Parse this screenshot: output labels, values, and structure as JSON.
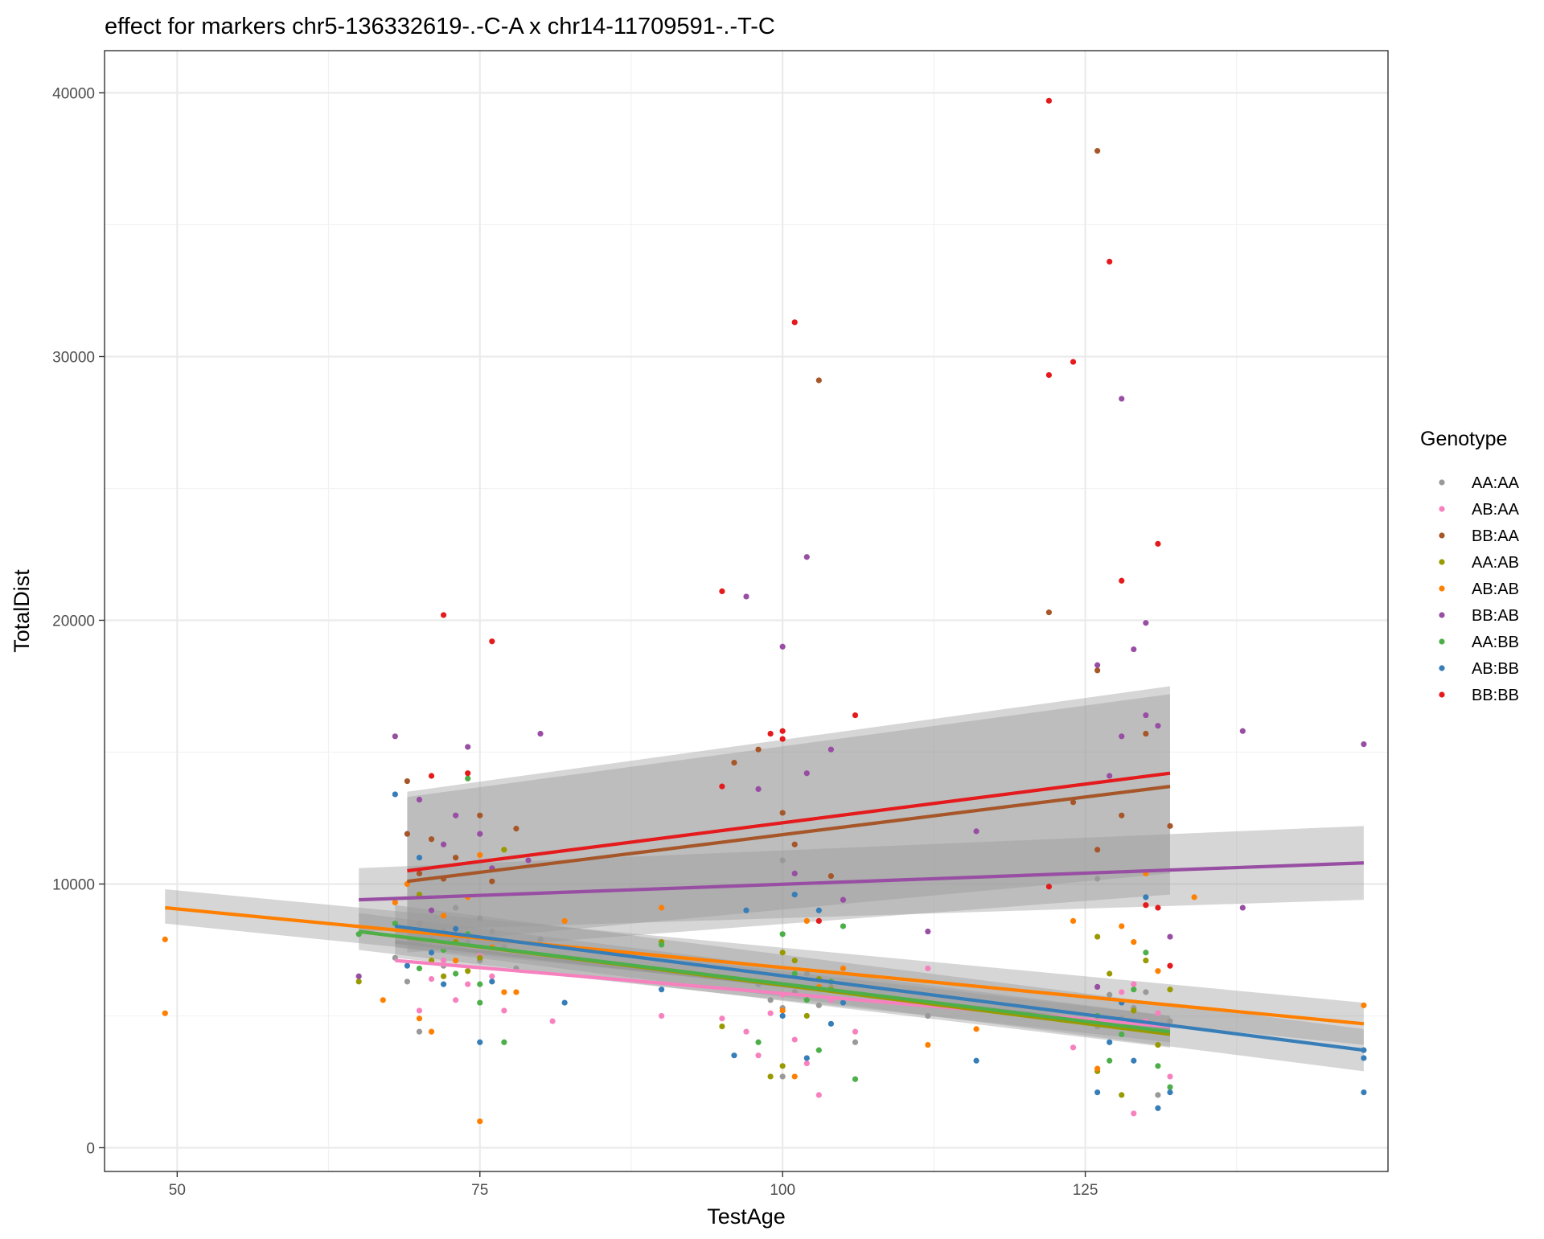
{
  "chart_data": {
    "type": "scatter",
    "title": "effect for markers chr5-136332619-.-C-A x chr14-11709591-.-T-C",
    "xlabel": "TestAge",
    "ylabel": "TotalDist",
    "xlim": [
      44,
      150
    ],
    "ylim": [
      -900,
      41600
    ],
    "x_ticks": [
      50,
      75,
      100,
      125
    ],
    "y_ticks": [
      0,
      10000,
      20000,
      30000,
      40000
    ],
    "x_tick_labels": [
      "50",
      "75",
      "100",
      "125"
    ],
    "y_tick_labels": [
      "0",
      "10000",
      "20000",
      "30000",
      "40000"
    ],
    "grid": true,
    "legend_title": "Genotype",
    "legend_position": "right",
    "series": [
      {
        "name": "AA:AA",
        "color": "#999999",
        "points": [
          [
            68,
            7200
          ],
          [
            69,
            6300
          ],
          [
            70,
            8500
          ],
          [
            70,
            4400
          ],
          [
            71,
            7900
          ],
          [
            72,
            8200
          ],
          [
            72,
            6900
          ],
          [
            73,
            9100
          ],
          [
            74,
            7800
          ],
          [
            75,
            8700
          ],
          [
            75,
            7100
          ],
          [
            76,
            8200
          ],
          [
            77,
            7600
          ],
          [
            78,
            6800
          ],
          [
            80,
            7900
          ],
          [
            98,
            6200
          ],
          [
            99,
            5600
          ],
          [
            100,
            5300
          ],
          [
            100,
            2700
          ],
          [
            100,
            10900
          ],
          [
            101,
            5900
          ],
          [
            102,
            6600
          ],
          [
            103,
            5400
          ],
          [
            104,
            6100
          ],
          [
            106,
            4000
          ],
          [
            112,
            5000
          ],
          [
            126,
            10200
          ],
          [
            126,
            4600
          ],
          [
            127,
            5800
          ],
          [
            128,
            4900
          ],
          [
            129,
            5300
          ],
          [
            130,
            5900
          ],
          [
            131,
            2000
          ],
          [
            132,
            4800
          ]
        ],
        "fit": {
          "x": [
            68,
            132
          ],
          "y": [
            7800,
            4500
          ]
        }
      },
      {
        "name": "AB:AA",
        "color": "#F781BF",
        "points": [
          [
            70,
            5200
          ],
          [
            71,
            6400
          ],
          [
            72,
            7100
          ],
          [
            73,
            5600
          ],
          [
            74,
            6200
          ],
          [
            75,
            7300
          ],
          [
            76,
            6500
          ],
          [
            77,
            5200
          ],
          [
            81,
            4800
          ],
          [
            90,
            5000
          ],
          [
            95,
            4900
          ],
          [
            97,
            4400
          ],
          [
            98,
            3500
          ],
          [
            99,
            5100
          ],
          [
            100,
            5800
          ],
          [
            101,
            4100
          ],
          [
            102,
            3200
          ],
          [
            103,
            2000
          ],
          [
            104,
            5600
          ],
          [
            106,
            4400
          ],
          [
            112,
            6800
          ],
          [
            124,
            3800
          ],
          [
            128,
            5900
          ],
          [
            129,
            1300
          ],
          [
            129,
            6200
          ],
          [
            130,
            4800
          ],
          [
            131,
            5100
          ],
          [
            132,
            2700
          ]
        ],
        "fit": {
          "x": [
            68,
            132
          ],
          "y": [
            7100,
            4600
          ]
        }
      },
      {
        "name": "BB:AA",
        "color": "#A65628",
        "points": [
          [
            69,
            13900
          ],
          [
            69,
            11900
          ],
          [
            70,
            10400
          ],
          [
            71,
            11700
          ],
          [
            72,
            10200
          ],
          [
            73,
            11000
          ],
          [
            75,
            12600
          ],
          [
            76,
            10100
          ],
          [
            78,
            12100
          ],
          [
            96,
            14600
          ],
          [
            98,
            15100
          ],
          [
            100,
            12700
          ],
          [
            101,
            11500
          ],
          [
            103,
            29100
          ],
          [
            104,
            10300
          ],
          [
            122,
            20300
          ],
          [
            124,
            13100
          ],
          [
            126,
            37800
          ],
          [
            126,
            18100
          ],
          [
            126,
            11300
          ],
          [
            128,
            12600
          ],
          [
            130,
            15700
          ],
          [
            132,
            12200
          ]
        ],
        "fit": {
          "x": [
            69,
            132
          ],
          "y": [
            10100,
            13700
          ]
        }
      },
      {
        "name": "AA:AB",
        "color": "#999900",
        "points": [
          [
            65,
            6300
          ],
          [
            70,
            9600
          ],
          [
            71,
            7100
          ],
          [
            72,
            6500
          ],
          [
            73,
            7800
          ],
          [
            74,
            6700
          ],
          [
            75,
            7200
          ],
          [
            77,
            11300
          ],
          [
            90,
            7800
          ],
          [
            95,
            4600
          ],
          [
            99,
            2700
          ],
          [
            100,
            7400
          ],
          [
            100,
            3100
          ],
          [
            101,
            7100
          ],
          [
            102,
            5000
          ],
          [
            103,
            6400
          ],
          [
            104,
            6000
          ],
          [
            126,
            8000
          ],
          [
            126,
            2900
          ],
          [
            127,
            6600
          ],
          [
            128,
            2000
          ],
          [
            129,
            5200
          ],
          [
            130,
            7100
          ],
          [
            131,
            3900
          ],
          [
            132,
            6000
          ]
        ],
        "fit": {
          "x": [
            65,
            132
          ],
          "y": [
            8200,
            4300
          ]
        }
      },
      {
        "name": "AB:AB",
        "color": "#FF7F00",
        "points": [
          [
            49,
            7900
          ],
          [
            49,
            5100
          ],
          [
            67,
            5600
          ],
          [
            68,
            9300
          ],
          [
            69,
            10000
          ],
          [
            70,
            4900
          ],
          [
            71,
            4400
          ],
          [
            72,
            8800
          ],
          [
            73,
            7100
          ],
          [
            74,
            9500
          ],
          [
            75,
            11100
          ],
          [
            75,
            1000
          ],
          [
            76,
            7600
          ],
          [
            77,
            5900
          ],
          [
            78,
            5900
          ],
          [
            82,
            8600
          ],
          [
            90,
            9100
          ],
          [
            100,
            5200
          ],
          [
            101,
            2700
          ],
          [
            102,
            8600
          ],
          [
            103,
            6100
          ],
          [
            105,
            6800
          ],
          [
            112,
            3900
          ],
          [
            116,
            4500
          ],
          [
            124,
            8600
          ],
          [
            126,
            3000
          ],
          [
            128,
            8400
          ],
          [
            129,
            7800
          ],
          [
            130,
            10400
          ],
          [
            131,
            6700
          ],
          [
            134,
            9500
          ],
          [
            148,
            5400
          ]
        ],
        "fit": {
          "x": [
            49,
            148
          ],
          "y": [
            9100,
            4700
          ]
        }
      },
      {
        "name": "BB:AB",
        "color": "#984EA3",
        "points": [
          [
            65,
            6500
          ],
          [
            68,
            15600
          ],
          [
            70,
            13200
          ],
          [
            71,
            9000
          ],
          [
            72,
            11500
          ],
          [
            73,
            12600
          ],
          [
            74,
            15200
          ],
          [
            75,
            11900
          ],
          [
            76,
            10600
          ],
          [
            79,
            10900
          ],
          [
            80,
            15700
          ],
          [
            97,
            20900
          ],
          [
            98,
            13600
          ],
          [
            100,
            19000
          ],
          [
            101,
            10400
          ],
          [
            102,
            22400
          ],
          [
            102,
            14200
          ],
          [
            104,
            15100
          ],
          [
            105,
            9400
          ],
          [
            112,
            8200
          ],
          [
            116,
            12000
          ],
          [
            126,
            18300
          ],
          [
            126,
            6100
          ],
          [
            127,
            14100
          ],
          [
            128,
            28400
          ],
          [
            128,
            15600
          ],
          [
            129,
            18900
          ],
          [
            130,
            19900
          ],
          [
            130,
            16400
          ],
          [
            131,
            16000
          ],
          [
            132,
            8000
          ],
          [
            138,
            15800
          ],
          [
            138,
            9100
          ],
          [
            148,
            15300
          ]
        ],
        "fit": {
          "x": [
            65,
            148
          ],
          "y": [
            9400,
            10800
          ]
        }
      },
      {
        "name": "AA:BB",
        "color": "#4DAF4A",
        "points": [
          [
            65,
            8100
          ],
          [
            68,
            8500
          ],
          [
            70,
            6800
          ],
          [
            72,
            7500
          ],
          [
            73,
            6600
          ],
          [
            74,
            14000
          ],
          [
            74,
            8100
          ],
          [
            75,
            5500
          ],
          [
            75,
            6200
          ],
          [
            77,
            4000
          ],
          [
            90,
            7700
          ],
          [
            98,
            4000
          ],
          [
            100,
            8100
          ],
          [
            101,
            6600
          ],
          [
            102,
            5600
          ],
          [
            103,
            3700
          ],
          [
            104,
            6300
          ],
          [
            105,
            8400
          ],
          [
            106,
            2600
          ],
          [
            126,
            5000
          ],
          [
            127,
            3300
          ],
          [
            128,
            4300
          ],
          [
            129,
            6000
          ],
          [
            130,
            7400
          ],
          [
            131,
            3100
          ],
          [
            132,
            2300
          ]
        ],
        "fit": {
          "x": [
            65,
            132
          ],
          "y": [
            8200,
            4400
          ]
        }
      },
      {
        "name": "AB:BB",
        "color": "#377EB8",
        "points": [
          [
            68,
            13400
          ],
          [
            69,
            6900
          ],
          [
            70,
            11000
          ],
          [
            71,
            7400
          ],
          [
            72,
            6200
          ],
          [
            73,
            8300
          ],
          [
            75,
            4000
          ],
          [
            76,
            6300
          ],
          [
            82,
            5500
          ],
          [
            90,
            6000
          ],
          [
            96,
            3500
          ],
          [
            97,
            9000
          ],
          [
            100,
            5000
          ],
          [
            101,
            9600
          ],
          [
            102,
            3400
          ],
          [
            103,
            9000
          ],
          [
            104,
            4700
          ],
          [
            105,
            5500
          ],
          [
            116,
            3300
          ],
          [
            126,
            2100
          ],
          [
            127,
            4000
          ],
          [
            128,
            5500
          ],
          [
            129,
            3300
          ],
          [
            130,
            9500
          ],
          [
            131,
            1500
          ],
          [
            132,
            2100
          ],
          [
            148,
            3700
          ],
          [
            148,
            3400
          ],
          [
            148,
            2100
          ]
        ],
        "fit": {
          "x": [
            68,
            148
          ],
          "y": [
            8400,
            3700
          ]
        }
      },
      {
        "name": "BB:BB",
        "color": "#E41A1C",
        "points": [
          [
            71,
            14100
          ],
          [
            72,
            20200
          ],
          [
            74,
            14200
          ],
          [
            76,
            19200
          ],
          [
            95,
            21100
          ],
          [
            95,
            13700
          ],
          [
            99,
            15700
          ],
          [
            100,
            15800
          ],
          [
            100,
            15500
          ],
          [
            101,
            31300
          ],
          [
            103,
            8600
          ],
          [
            106,
            16400
          ],
          [
            122,
            39700
          ],
          [
            122,
            29300
          ],
          [
            122,
            9900
          ],
          [
            124,
            29800
          ],
          [
            127,
            33600
          ],
          [
            128,
            21500
          ],
          [
            130,
            9200
          ],
          [
            131,
            22900
          ],
          [
            131,
            9100
          ],
          [
            132,
            6900
          ]
        ],
        "fit": {
          "x": [
            69,
            132
          ],
          "y": [
            10500,
            14200
          ]
        }
      }
    ],
    "confidence_bands": [
      {
        "series": "BB:BB",
        "x": [
          69,
          132
        ],
        "lower": [
          7700,
          10400
        ],
        "upper": [
          13500,
          17500
        ]
      },
      {
        "series": "BB:AA",
        "x": [
          69,
          132
        ],
        "lower": [
          7400,
          9600
        ],
        "upper": [
          13300,
          17200
        ]
      },
      {
        "series": "BB:AB",
        "x": [
          65,
          148
        ],
        "lower": [
          8200,
          9400
        ],
        "upper": [
          10600,
          12200
        ]
      },
      {
        "series": "AB:AB",
        "x": [
          49,
          148
        ],
        "lower": [
          8500,
          3900
        ],
        "upper": [
          9800,
          5500
        ]
      },
      {
        "series": "AB:BB",
        "x": [
          68,
          148
        ],
        "lower": [
          7600,
          2900
        ],
        "upper": [
          9200,
          4500
        ]
      },
      {
        "series": "AA:BB",
        "x": [
          65,
          132
        ],
        "lower": [
          7500,
          3800
        ],
        "upper": [
          8900,
          5000
        ]
      },
      {
        "series": "AA:AA",
        "x": [
          68,
          132
        ],
        "lower": [
          7200,
          4000
        ],
        "upper": [
          8400,
          5000
        ]
      }
    ]
  }
}
